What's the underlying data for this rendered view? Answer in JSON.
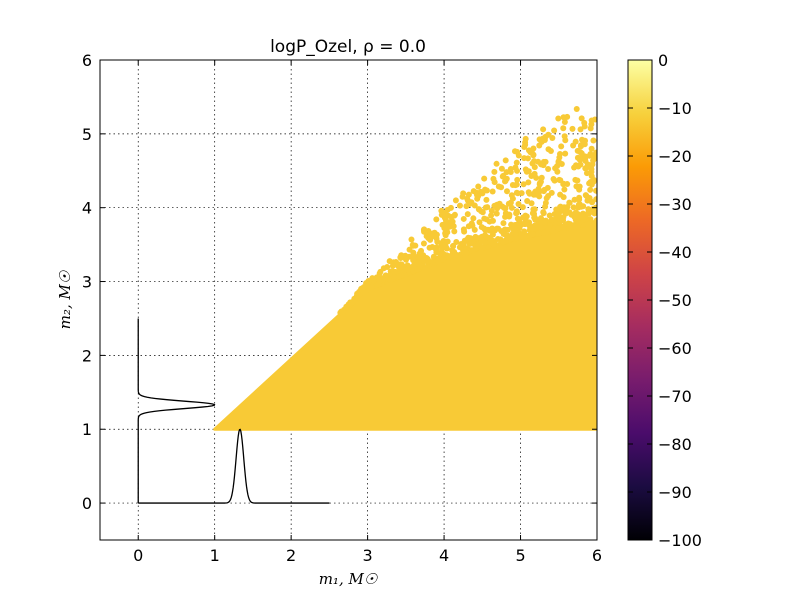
{
  "chart_data": {
    "type": "scatter",
    "title": "logP_Ozel, ρ = 0.0",
    "xlabel": "m₁, M☉",
    "ylabel": "m₂, M☉",
    "xlim": [
      -0.5,
      6
    ],
    "ylim": [
      -0.5,
      6
    ],
    "x_ticks": [
      "0",
      "1",
      "2",
      "3",
      "4",
      "5",
      "6"
    ],
    "y_ticks": [
      "0",
      "1",
      "2",
      "3",
      "4",
      "5",
      "6"
    ],
    "grid": true,
    "point_color": "#f8ca36",
    "scatter_region": {
      "x_range": [
        1.0,
        6.0
      ],
      "y_min": 1.0,
      "y_upper_bound": "y ≤ x",
      "dense_upper_envelope": [
        [
          1.0,
          1.0
        ],
        [
          3.0,
          2.9
        ],
        [
          4.0,
          3.3
        ],
        [
          5.0,
          3.6
        ],
        [
          6.0,
          3.8
        ]
      ],
      "sparse_upper_envelope": [
        [
          3.0,
          3.05
        ],
        [
          4.0,
          4.0
        ],
        [
          5.0,
          4.9
        ],
        [
          5.7,
          5.35
        ],
        [
          6.0,
          5.3
        ]
      ]
    },
    "marginal_pdfs": [
      {
        "axis": "x",
        "curve": "black",
        "x_range": [
          0,
          2.5
        ],
        "peak_x": 1.33,
        "peak_value": 1.0,
        "width_sigma": 0.05
      },
      {
        "axis": "y",
        "curve": "black",
        "y_range": [
          0,
          2.5
        ],
        "peak_y": 1.33,
        "peak_value": 1.0,
        "width_sigma": 0.05
      }
    ],
    "colorbar": {
      "range": [
        -100,
        0
      ],
      "ticks": [
        "0",
        "−10",
        "−20",
        "−30",
        "−40",
        "−50",
        "−60",
        "−70",
        "−80",
        "−90",
        "−100"
      ],
      "colormap": "inferno",
      "stops": [
        "#000004",
        "#1b0c41",
        "#4a0c6b",
        "#781c6d",
        "#a52c60",
        "#cf4446",
        "#ed6925",
        "#fb9b06",
        "#f7d13d",
        "#fcffa4"
      ]
    }
  }
}
